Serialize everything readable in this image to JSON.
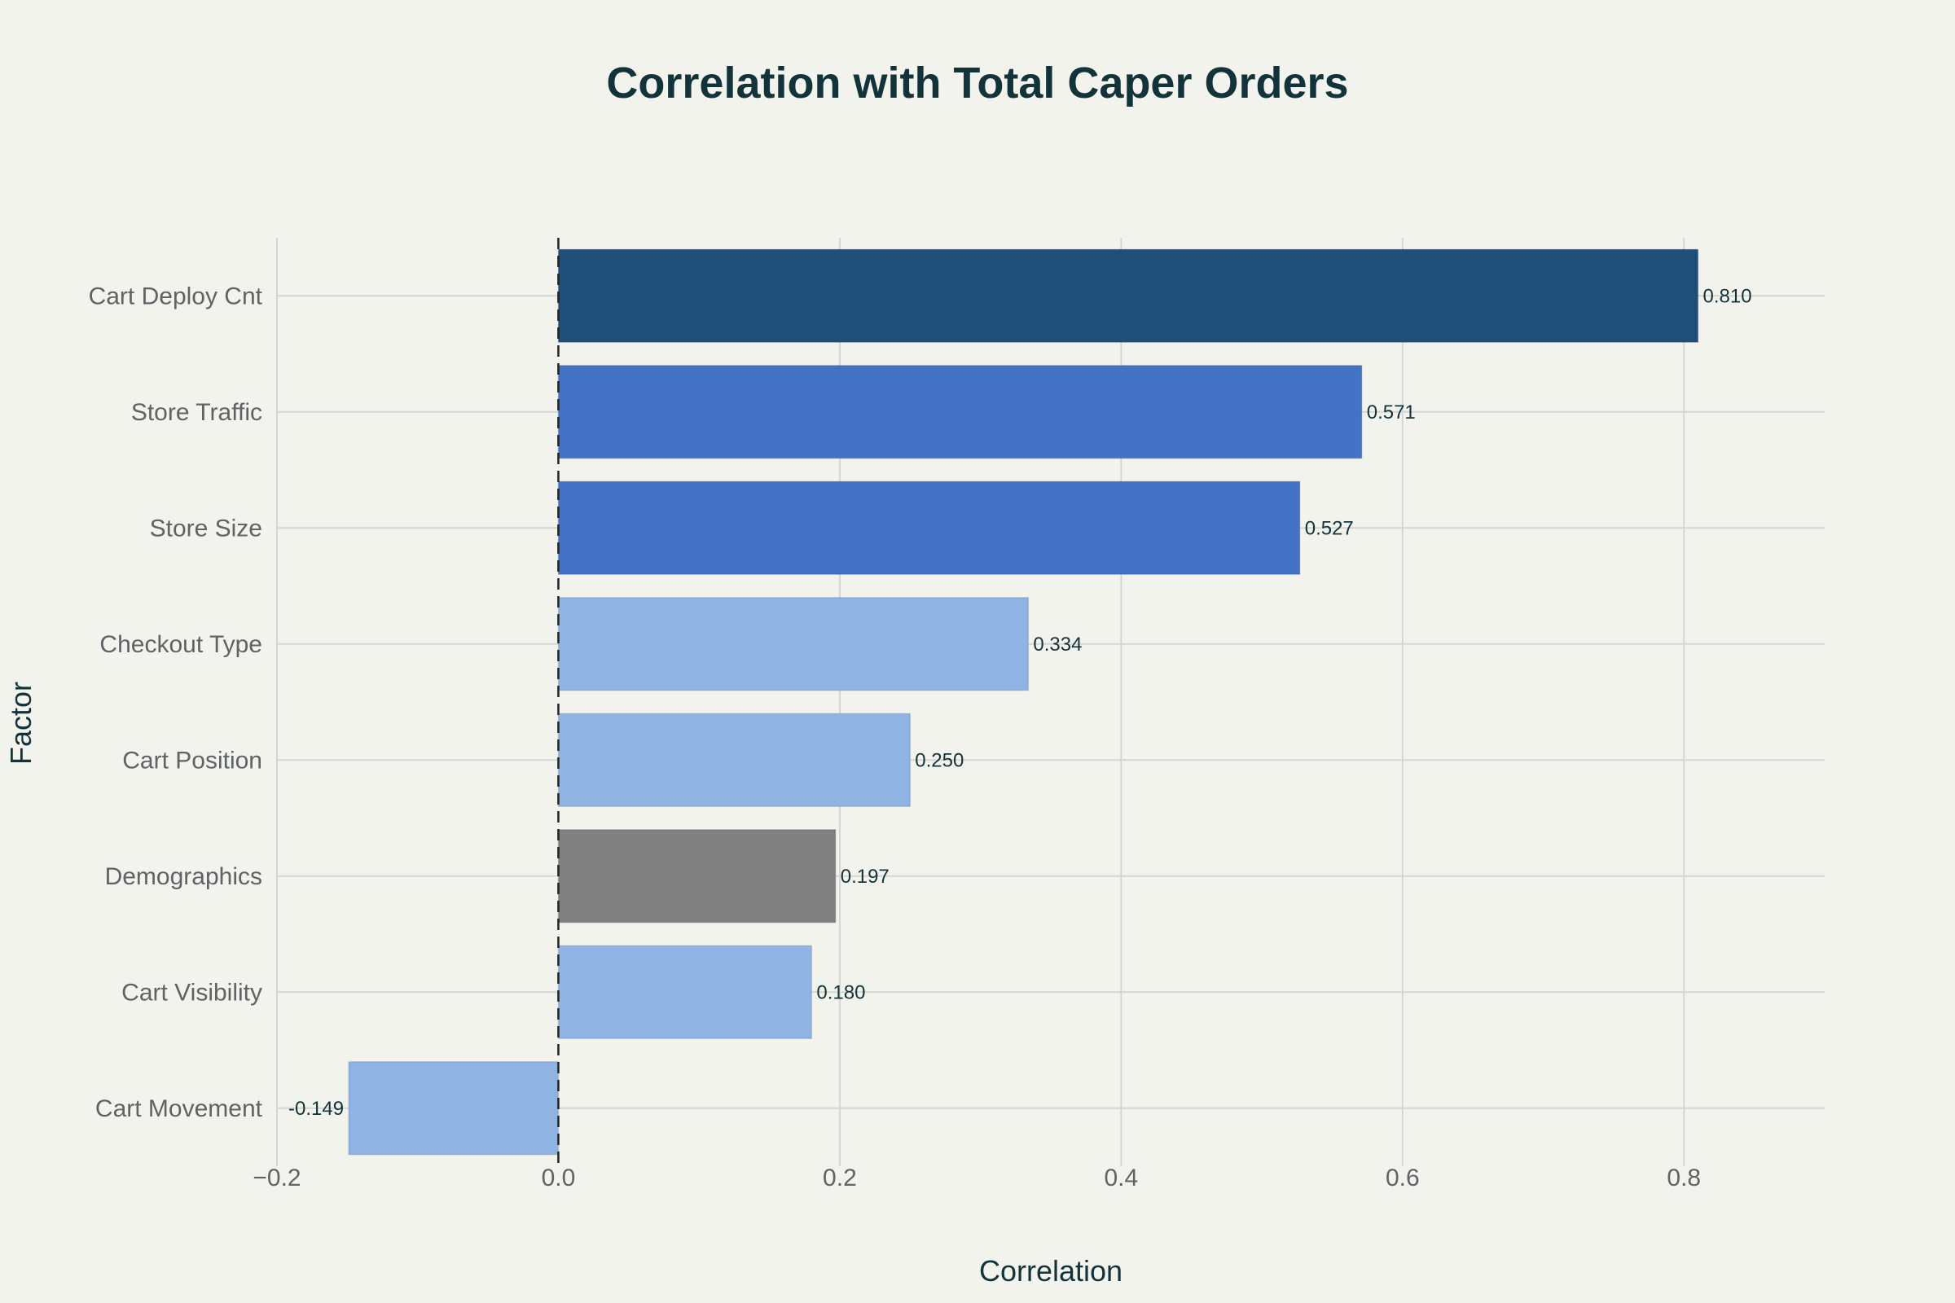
{
  "chart_data": {
    "type": "bar",
    "orientation": "horizontal",
    "title": "Correlation with Total Caper Orders",
    "xlabel": "Correlation",
    "ylabel": "Factor",
    "xlim": [
      -0.2,
      0.9
    ],
    "xticks": [
      "−0.2",
      "0.0",
      "0.2",
      "0.4",
      "0.6",
      "0.8"
    ],
    "xtick_values": [
      -0.2,
      0.0,
      0.2,
      0.4,
      0.6,
      0.8
    ],
    "grid": true,
    "zero_line": "dashed",
    "categories": [
      "Cart Deploy Cnt",
      "Store Traffic",
      "Store Size",
      "Checkout Type",
      "Cart Position",
      "Demographics",
      "Cart Visibility",
      "Cart Movement"
    ],
    "values": [
      0.81,
      0.571,
      0.527,
      0.334,
      0.25,
      0.197,
      0.18,
      -0.149
    ],
    "data_labels": [
      "0.810",
      "0.571",
      "0.527",
      "0.334",
      "0.250",
      "0.197",
      "0.180",
      "-0.149"
    ],
    "colors": [
      "#1f4e79",
      "#4472c4",
      "#4472c4",
      "#8fb4e3",
      "#8fb4e3",
      "#808080",
      "#8fb4e3",
      "#8fb4e3"
    ]
  }
}
